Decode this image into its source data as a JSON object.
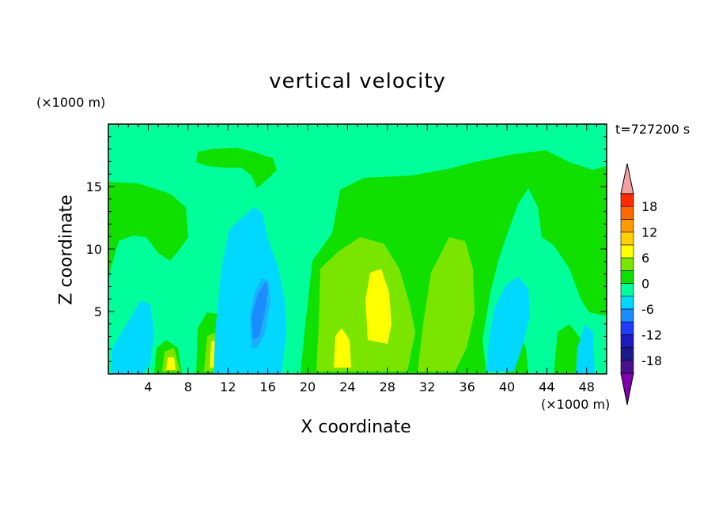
{
  "chart_data": {
    "type": "heatmap",
    "title": "vertical velocity",
    "xlabel": "X coordinate",
    "ylabel": "Z coordinate",
    "x_unit": "(×1000 m)",
    "y_unit": "(×1000 m)",
    "time_label": "t=727200 s",
    "xlim": [
      0,
      50
    ],
    "ylim": [
      0,
      20
    ],
    "x_ticks": [
      4,
      8,
      12,
      16,
      20,
      24,
      28,
      32,
      36,
      40,
      44,
      48
    ],
    "y_ticks": [
      5,
      10,
      15
    ],
    "colorbar": {
      "levels": [
        -21,
        -18,
        -15,
        -12,
        -9,
        -6,
        -3,
        0,
        3,
        6,
        9,
        12,
        15,
        18,
        21
      ],
      "tick_labels": [
        18,
        12,
        6,
        0,
        -6,
        -12,
        -18
      ],
      "colors": [
        "#8000b0",
        "#4b0e8c",
        "#1a1a8a",
        "#1c1cc0",
        "#1f3cff",
        "#1a8cff",
        "#00d8ff",
        "#00ff9a",
        "#0fe000",
        "#7ae600",
        "#ffff00",
        "#ffd000",
        "#ff9a00",
        "#ff6a00",
        "#ff2a00",
        "#f5a0a0"
      ]
    },
    "features": [
      {
        "x": 15.2,
        "z": 5.0,
        "value": -8
      },
      {
        "x": 15.5,
        "z": 6.5,
        "value": -5
      },
      {
        "x": 14.0,
        "z": 8.0,
        "value": -3
      },
      {
        "x": 27.0,
        "z": 5.5,
        "value": 8
      },
      {
        "x": 23.5,
        "z": 2.0,
        "value": 7
      },
      {
        "x": 10.8,
        "z": 2.0,
        "value": 6
      },
      {
        "x": 6.3,
        "z": 1.0,
        "value": 5
      },
      {
        "x": 34.0,
        "z": 8.0,
        "value": 4
      },
      {
        "x": 40.0,
        "z": 5.0,
        "value": -4
      },
      {
        "x": 43.0,
        "z": 9.5,
        "value": -2
      }
    ]
  }
}
